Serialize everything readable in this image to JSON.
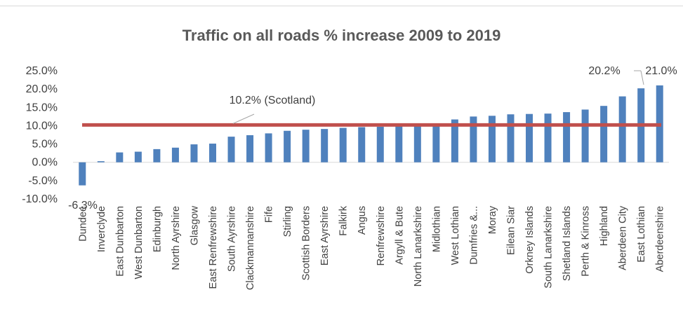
{
  "chart_data": {
    "type": "bar",
    "title": "Traffic on all roads % increase 2009 to 2019",
    "xlabel": "",
    "ylabel": "",
    "ylim": [
      -10,
      25
    ],
    "yticks": [
      "25.0%",
      "20.0%",
      "15.0%",
      "10.0%",
      "5.0%",
      "0.0%",
      "-5.0%",
      "-10.0%"
    ],
    "ytick_values": [
      25,
      20,
      15,
      10,
      5,
      0,
      -5,
      -10
    ],
    "categories": [
      "Dundee",
      "Inverclyde",
      "East Dunbarton",
      "West Dunbarton",
      "Edinburgh",
      "North Ayrshire",
      "Glasgow",
      "East Renfrewshire",
      "South Ayrshire",
      "Clackmannanshire",
      "Fife",
      "Stirling",
      "Scottish Borders",
      "East Ayrshire",
      "Falkirk",
      "Angus",
      "Renfrewshire",
      "Argyll & Bute",
      "North Lanarkshire",
      "Midlothian",
      "West Lothian",
      "Dumfries &...",
      "Moray",
      "Eilean Siar",
      "Orkney Islands",
      "South Lanarkshire",
      "Shetland Islands",
      "Perth & Kinross",
      "Highland",
      "Aberdeen City",
      "East Lothian",
      "Aberdeenshire"
    ],
    "values": [
      -6.3,
      0.3,
      2.7,
      2.9,
      3.6,
      4.0,
      4.9,
      5.1,
      7.0,
      7.4,
      7.9,
      8.6,
      8.9,
      9.1,
      9.4,
      9.6,
      9.7,
      9.8,
      9.9,
      10.0,
      11.7,
      12.5,
      12.7,
      13.1,
      13.2,
      13.3,
      13.7,
      14.4,
      15.4,
      18.0,
      20.2,
      21.0
    ],
    "data_labels": {
      "first": "-6.3%",
      "second_last": "20.2%",
      "last": "21.0%"
    },
    "reference_line": {
      "value": 10.2,
      "label": "10.2% (Scotland)"
    },
    "bar_color": "#4f81bd",
    "line_color": "#c0504d",
    "grid": false,
    "legend": "none"
  }
}
